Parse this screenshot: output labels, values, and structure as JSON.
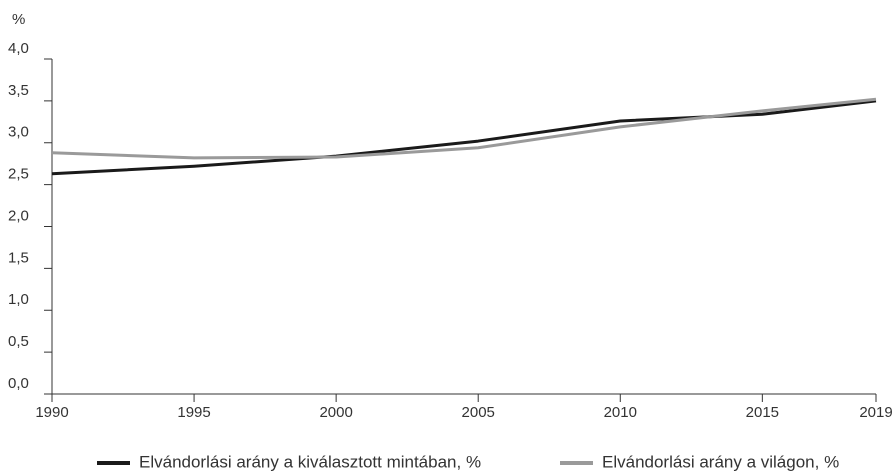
{
  "chart_data": {
    "type": "line",
    "ylabel": "%",
    "x": [
      1990,
      1995,
      2000,
      2005,
      2010,
      2015,
      2019
    ],
    "series": [
      {
        "name": "Elvándorlási arány a kiválasztott mintában, %",
        "color": "#1a1a1a",
        "values": [
          2.63,
          2.72,
          2.84,
          3.02,
          3.26,
          3.34,
          3.5
        ]
      },
      {
        "name": "Elvándorlási arány a világon, %",
        "color": "#9a9a9a",
        "values": [
          2.88,
          2.82,
          2.83,
          2.94,
          3.19,
          3.38,
          3.52
        ]
      }
    ],
    "xlim": [
      1990,
      2019
    ],
    "xticks": [
      1990,
      1995,
      2000,
      2005,
      2010,
      2015,
      2019
    ],
    "ylim": [
      0,
      4
    ],
    "yticks": [
      {
        "value": 0,
        "label": "0,0"
      },
      {
        "value": 0.5,
        "label": "0,5"
      },
      {
        "value": 1,
        "label": "1,0"
      },
      {
        "value": 1.5,
        "label": "1,5"
      },
      {
        "value": 2,
        "label": "2,0"
      },
      {
        "value": 2.5,
        "label": "2,5"
      },
      {
        "value": 3,
        "label": "3,0"
      },
      {
        "value": 3.5,
        "label": "3,5"
      },
      {
        "value": 4,
        "label": "4,0"
      }
    ],
    "grid": false,
    "legend": "bottom"
  }
}
